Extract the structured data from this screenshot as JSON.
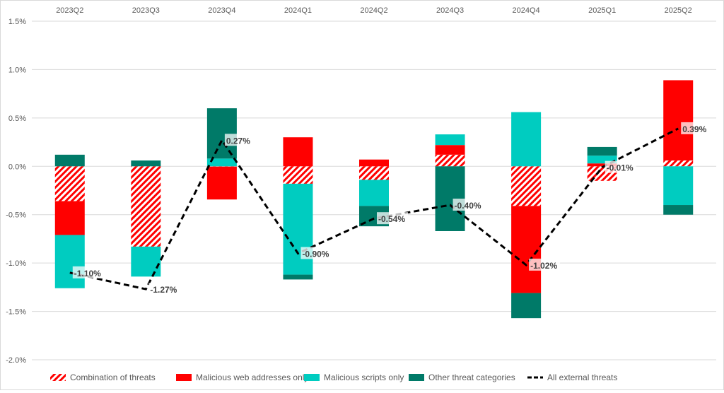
{
  "chart_data": {
    "type": "bar",
    "stacked": true,
    "categories": [
      "2023Q2",
      "2023Q3",
      "2023Q4",
      "2024Q1",
      "2024Q2",
      "2024Q3",
      "2024Q4",
      "2025Q1",
      "2025Q2"
    ],
    "ylim": [
      -2.0,
      1.5
    ],
    "yticks": [
      1.5,
      1.0,
      0.5,
      0.0,
      -0.5,
      -1.0,
      -1.5,
      -2.0
    ],
    "ytick_labels": [
      "1.5%",
      "1.0%",
      "0.5%",
      "0.0%",
      "-0.5%",
      "-1.0%",
      "-1.5%",
      "-2.0%"
    ],
    "grid": true,
    "legend_position": "bottom",
    "series": [
      {
        "name": "Combination of threats",
        "color": "#ff0000",
        "pattern": "hatch",
        "values": [
          -0.36,
          -0.83,
          -0.003,
          -0.18,
          -0.14,
          0.12,
          -0.41,
          -0.15,
          0.06
        ]
      },
      {
        "name": "Malicious web addresses only",
        "color": "#ff0000",
        "values": [
          -0.35,
          0.0,
          -0.34,
          0.3,
          0.07,
          0.1,
          -0.9,
          0.03,
          0.83
        ]
      },
      {
        "name": "Malicious scripts only",
        "color": "#00ccc0",
        "values": [
          -0.55,
          -0.31,
          0.08,
          -0.94,
          -0.27,
          0.11,
          0.56,
          0.08,
          -0.4
        ]
      },
      {
        "name": "Other threat categories",
        "color": "#007a68",
        "values": [
          0.12,
          0.06,
          0.52,
          -0.05,
          -0.21,
          -0.67,
          -0.26,
          0.09,
          -0.1
        ]
      }
    ],
    "line": {
      "name": "All external threats",
      "color": "#000000",
      "style": "dashed",
      "values": [
        -1.1,
        -1.27,
        0.27,
        -0.9,
        -0.54,
        -0.4,
        -1.02,
        -0.01,
        0.39
      ],
      "labels": [
        "-1.10%",
        "-1.27%",
        "0.27%",
        "-0.90%",
        "-0.54%",
        "-0.40%",
        "-1.02%",
        "-0.01%",
        "0.39%"
      ]
    }
  }
}
